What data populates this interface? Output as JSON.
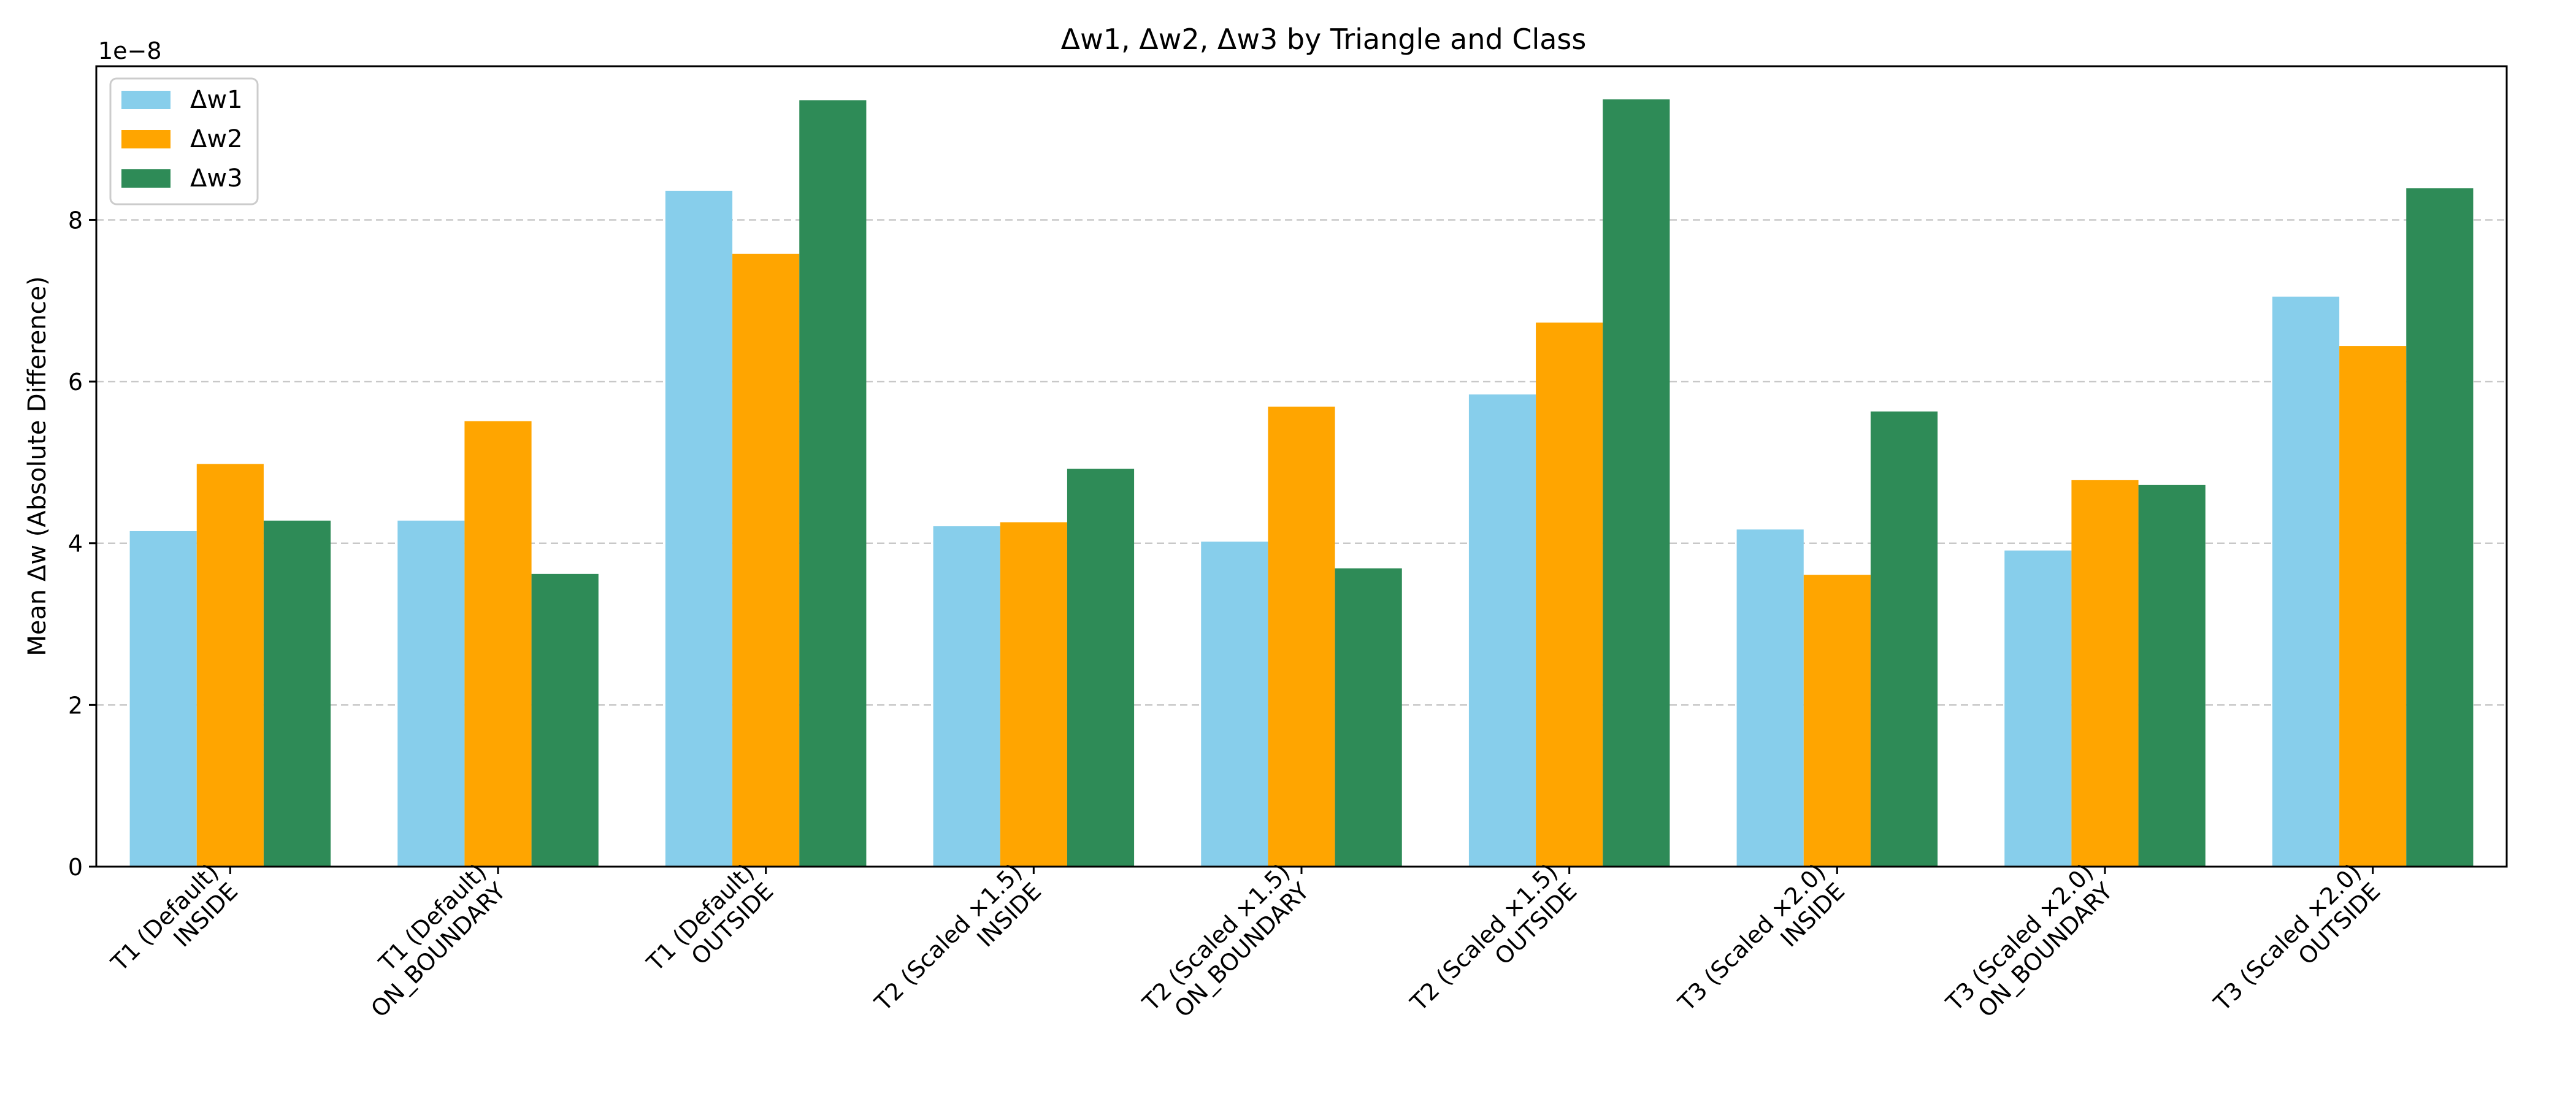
{
  "chart_data": {
    "type": "bar",
    "title": "Δw1, Δw2, Δw3 by Triangle and Class",
    "ylabel": "Mean Δw (Absolute Difference)",
    "xlabel": "",
    "y_offset_text": "1e−8",
    "ylim": [
      0,
      9.9
    ],
    "yticks": [
      0,
      2,
      4,
      6,
      8
    ],
    "grid": "y-dashed",
    "legend_position": "upper-left",
    "categories": [
      "T1 (Default)\nINSIDE",
      "T1 (Default)\nON_BOUNDARY",
      "T1 (Default)\nOUTSIDE",
      "T2 (Scaled ×1.5)\nINSIDE",
      "T2 (Scaled ×1.5)\nON_BOUNDARY",
      "T2 (Scaled ×1.5)\nOUTSIDE",
      "T3 (Scaled ×2.0)\nINSIDE",
      "T3 (Scaled ×2.0)\nON_BOUNDARY",
      "T3 (Scaled ×2.0)\nOUTSIDE"
    ],
    "series": [
      {
        "name": "Δw1",
        "color": "#87ceeb",
        "values": [
          4.15,
          4.28,
          8.36,
          4.21,
          4.02,
          5.84,
          4.17,
          3.91,
          7.05
        ]
      },
      {
        "name": "Δw2",
        "color": "#ffa500",
        "values": [
          4.98,
          5.51,
          7.58,
          4.26,
          5.69,
          6.73,
          3.61,
          4.78,
          6.44
        ]
      },
      {
        "name": "Δw3",
        "color": "#2e8b57",
        "values": [
          4.28,
          3.62,
          9.48,
          4.92,
          3.69,
          9.49,
          5.63,
          4.72,
          8.39
        ]
      }
    ]
  }
}
